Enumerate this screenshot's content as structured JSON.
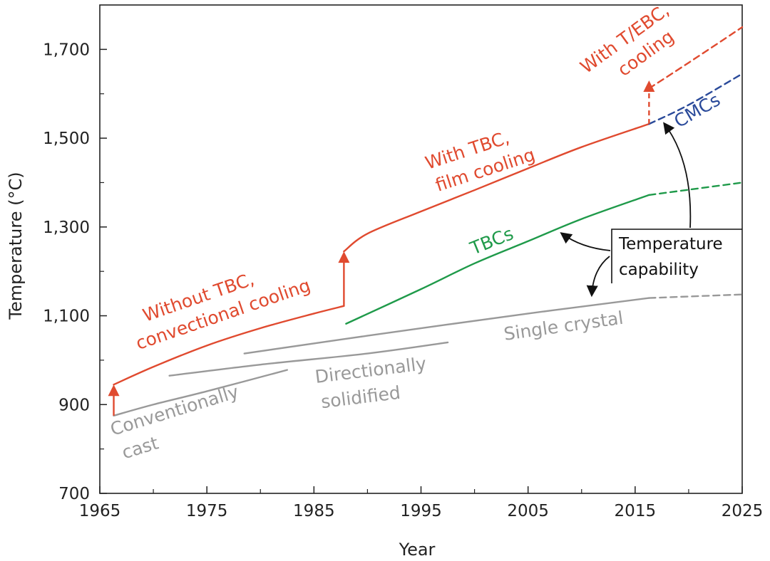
{
  "chart_data": {
    "type": "line",
    "title": "",
    "xlabel": "Year",
    "ylabel": "Temperature (°C)",
    "xlim": [
      1965,
      2025
    ],
    "ylim": [
      700,
      1800
    ],
    "x_ticks": [
      1965,
      1975,
      1985,
      1995,
      2005,
      2015,
      2025
    ],
    "y_ticks": [
      700,
      900,
      1100,
      1300,
      1500,
      1700
    ],
    "x_tick_labels": [
      "1965",
      "1975",
      "1985",
      "1995",
      "2005",
      "2015",
      "2025"
    ],
    "y_tick_labels": [
      "700",
      "900",
      "1,100",
      "1,300",
      "1,500",
      "1,700"
    ],
    "grid": false,
    "legend": "none",
    "colors": {
      "red": "#e04a2f",
      "green": "#1f9a4a",
      "blue": "#2a4a9a",
      "gray": "#999999",
      "dark": "#222222"
    },
    "series": [
      {
        "key": "conv_cast",
        "color": "gray",
        "points": [
          [
            1966.3,
            875
          ],
          [
            1970,
            900
          ],
          [
            1975,
            930
          ],
          [
            1982.5,
            978
          ]
        ]
      },
      {
        "key": "dir_solid",
        "color": "gray",
        "points": [
          [
            1971.5,
            965
          ],
          [
            1980,
            990
          ],
          [
            1990,
            1015
          ],
          [
            1997.5,
            1040
          ]
        ]
      },
      {
        "key": "single_crystal",
        "color": "gray",
        "points": [
          [
            1978.5,
            1015
          ],
          [
            1990,
            1055
          ],
          [
            2005,
            1105
          ],
          [
            2016.3,
            1140
          ]
        ]
      },
      {
        "key": "single_crystal_proj",
        "color": "gray",
        "dashed": true,
        "points": [
          [
            2016.3,
            1140
          ],
          [
            2025,
            1148
          ]
        ]
      },
      {
        "key": "without_tbc",
        "color": "red",
        "points": [
          [
            1966.3,
            945
          ],
          [
            1970,
            985
          ],
          [
            1975,
            1033
          ],
          [
            1980,
            1072
          ],
          [
            1985,
            1105
          ],
          [
            1987.8,
            1122
          ]
        ]
      },
      {
        "key": "with_tbc",
        "color": "red",
        "points": [
          [
            1987.8,
            1245
          ],
          [
            1990,
            1285
          ],
          [
            1995,
            1335
          ],
          [
            2000,
            1383
          ],
          [
            2005,
            1432
          ],
          [
            2010,
            1480
          ],
          [
            2016.3,
            1532
          ]
        ]
      },
      {
        "key": "tbcs",
        "color": "green",
        "points": [
          [
            1988,
            1082
          ],
          [
            1995,
            1160
          ],
          [
            2000,
            1218
          ],
          [
            2005,
            1268
          ],
          [
            2010,
            1318
          ],
          [
            2016.3,
            1372
          ]
        ]
      },
      {
        "key": "tbcs_proj",
        "color": "green",
        "dashed": true,
        "points": [
          [
            2016.3,
            1372
          ],
          [
            2025,
            1400
          ]
        ]
      },
      {
        "key": "cmcs",
        "color": "blue",
        "dashed": true,
        "points": [
          [
            2016.3,
            1532
          ],
          [
            2020,
            1575
          ],
          [
            2025,
            1645
          ]
        ]
      },
      {
        "key": "t_ebc",
        "color": "red",
        "dashed": true,
        "points": [
          [
            2016.3,
            1612
          ],
          [
            2020,
            1670
          ],
          [
            2025,
            1750
          ]
        ]
      }
    ],
    "red_arrows": [
      {
        "x": 1966.3,
        "from": 875,
        "to": 945,
        "dashed": false
      },
      {
        "x": 1987.8,
        "from": 1122,
        "to": 1245,
        "dashed": false
      },
      {
        "x": 2016.3,
        "from": 1532,
        "to": 1630,
        "dashed": true
      }
    ],
    "labels": {
      "conv_cast_1": "Conventionally",
      "conv_cast_2": "cast",
      "dir_solid_1": "Directionally",
      "dir_solid_2": "solidified",
      "single_crystal": "Single crystal",
      "without_tbc_1": "Without TBC,",
      "without_tbc_2": "convectional cooling",
      "with_tbc_1": "With TBC,",
      "with_tbc_2": "film cooling",
      "tbcs": "TBCs",
      "cmcs": "CMCs",
      "t_ebc_1": "With T/EBC,",
      "t_ebc_2": "cooling",
      "temp_cap_1": "Temperature",
      "temp_cap_2": "capability"
    }
  }
}
